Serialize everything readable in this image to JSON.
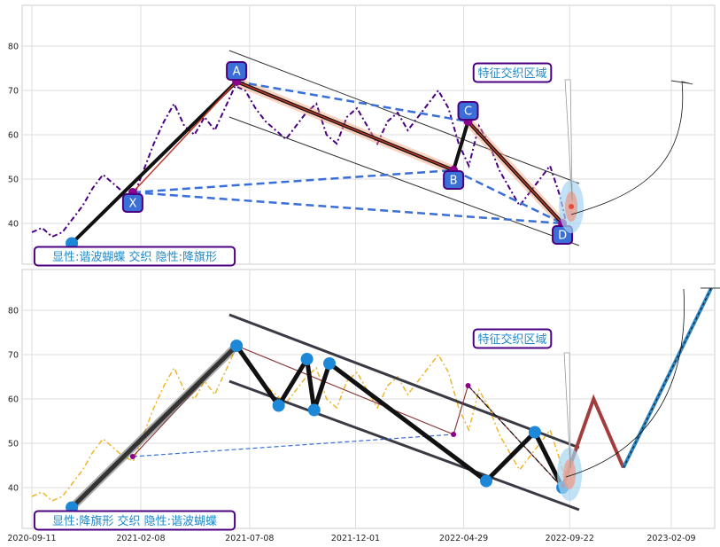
{
  "chart_data": [
    {
      "type": "line",
      "panel": "top",
      "x_ticks": [
        "2020-09-11",
        "2021-02-08",
        "2021-07-08",
        "2021-12-01",
        "2022-04-29",
        "2022-09-22",
        "2023-02-09"
      ],
      "ylim": [
        31,
        89
      ],
      "y_ticks": [
        40,
        50,
        60,
        70,
        80
      ],
      "grid": true,
      "pattern_points": [
        {
          "name": "X",
          "x": "2021-01-28",
          "y": 47
        },
        {
          "name": "A",
          "x": "2021-06-20",
          "y": 72
        },
        {
          "name": "B",
          "x": "2022-04-15",
          "y": 52
        },
        {
          "name": "C",
          "x": "2022-05-05",
          "y": 63
        },
        {
          "name": "D",
          "x": "2022-09-12",
          "y": 40
        }
      ],
      "start_point": {
        "x": "2020-11-05",
        "y": 35.5
      },
      "channel": {
        "upper": [
          [
            "2021-06-10",
            79
          ],
          [
            "2022-10-05",
            49
          ]
        ],
        "lower": [
          [
            "2021-06-10",
            64
          ],
          [
            "2022-10-05",
            35
          ]
        ]
      },
      "annotation_zone": "特征交织区域",
      "label": "显性:谐波蝴蝶 交织 隐性:降旗形",
      "price_series": {
        "dates": [
          "2020-09-11",
          "2020-09-25",
          "2020-10-09",
          "2020-10-23",
          "2020-11-06",
          "2020-11-20",
          "2020-12-04",
          "2020-12-18",
          "2021-01-01",
          "2021-01-15",
          "2021-01-29",
          "2021-02-12",
          "2021-02-26",
          "2021-03-12",
          "2021-03-26",
          "2021-04-09",
          "2021-04-23",
          "2021-05-07",
          "2021-05-21",
          "2021-06-04",
          "2021-06-18",
          "2021-07-02",
          "2021-07-16",
          "2021-07-30",
          "2021-08-13",
          "2021-08-27",
          "2021-09-10",
          "2021-09-24",
          "2021-10-08",
          "2021-10-22",
          "2021-11-05",
          "2021-11-19",
          "2021-12-03",
          "2021-12-17",
          "2021-12-31",
          "2022-01-14",
          "2022-01-28",
          "2022-02-11",
          "2022-02-25",
          "2022-03-11",
          "2022-03-25",
          "2022-04-08",
          "2022-04-22",
          "2022-05-06",
          "2022-05-20",
          "2022-06-03",
          "2022-06-17",
          "2022-07-01",
          "2022-07-15",
          "2022-07-29",
          "2022-08-12",
          "2022-08-26",
          "2022-09-09",
          "2022-09-16"
        ],
        "values": [
          38,
          39,
          37,
          38,
          41,
          44,
          48,
          51,
          49,
          47,
          46,
          52,
          58,
          63,
          67,
          62,
          60,
          64,
          61,
          66,
          71,
          70,
          66,
          63,
          61,
          59,
          62,
          65,
          67,
          60,
          58,
          64,
          66,
          62,
          58,
          63,
          65,
          61,
          64,
          67,
          70,
          66,
          58,
          53,
          62,
          58,
          52,
          48,
          44,
          47,
          50,
          53,
          46,
          41
        ]
      }
    },
    {
      "type": "line",
      "panel": "bottom",
      "x_ticks": [
        "2020-09-11",
        "2021-02-08",
        "2021-07-08",
        "2021-12-01",
        "2022-04-29",
        "2022-09-22",
        "2023-02-09"
      ],
      "ylim": [
        31,
        89
      ],
      "y_ticks": [
        40,
        50,
        60,
        70,
        80
      ],
      "grid": true,
      "flag_points": [
        {
          "x": "2020-11-05",
          "y": 35.5
        },
        {
          "x": "2021-06-20",
          "y": 72
        },
        {
          "x": "2021-08-17",
          "y": 58.5
        },
        {
          "x": "2021-09-25",
          "y": 69
        },
        {
          "x": "2021-10-05",
          "y": 57.5
        },
        {
          "x": "2021-10-26",
          "y": 68
        },
        {
          "x": "2022-05-30",
          "y": 41.5
        },
        {
          "x": "2022-08-05",
          "y": 52.5
        },
        {
          "x": "2022-09-12",
          "y": 40
        }
      ],
      "projection": [
        {
          "x": "2022-09-12",
          "y": 40
        },
        {
          "x": "2022-10-25",
          "y": 60
        },
        {
          "x": "2022-12-05",
          "y": 44.5
        },
        {
          "x": "2023-04-05",
          "y": 85
        }
      ],
      "annotation_zone": "特征交织区域",
      "label": "显性:降旗形 交织 隐性:谐波蝴蝶"
    }
  ]
}
